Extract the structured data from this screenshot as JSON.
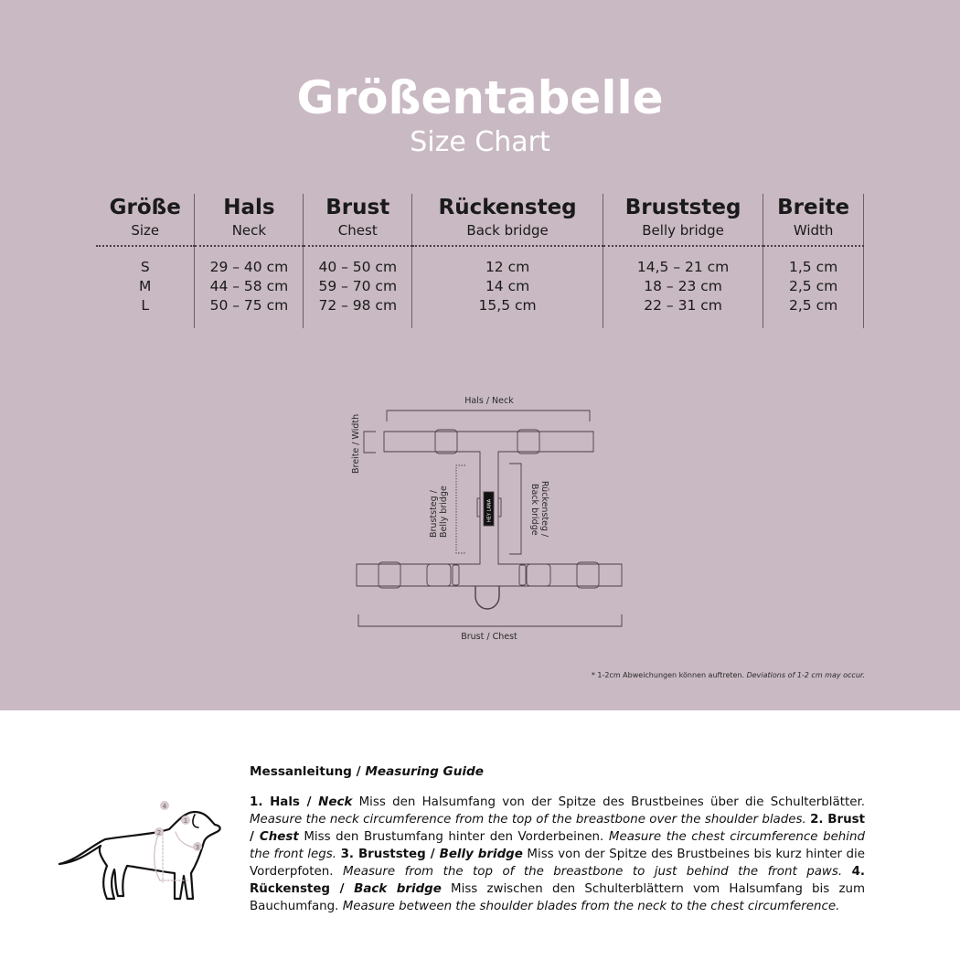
{
  "header": {
    "title": "Größentabelle",
    "subtitle": "Size Chart"
  },
  "table": {
    "columns": [
      {
        "de": "Größe",
        "en": "Size"
      },
      {
        "de": "Hals",
        "en": "Neck"
      },
      {
        "de": "Brust",
        "en": "Chest"
      },
      {
        "de": "Rückensteg",
        "en": "Back bridge"
      },
      {
        "de": "Bruststeg",
        "en": "Belly bridge"
      },
      {
        "de": "Breite",
        "en": "Width"
      }
    ],
    "rows": [
      [
        "S",
        "29 – 40 cm",
        "40 – 50 cm",
        "12 cm",
        "14,5 – 21 cm",
        "1,5 cm"
      ],
      [
        "M",
        "44 – 58 cm",
        "59 – 70 cm",
        "14 cm",
        "18 – 23 cm",
        "2,5 cm"
      ],
      [
        "L",
        "50 – 75 cm",
        "72 – 98 cm",
        "15,5 cm",
        "22 – 31 cm",
        "2,5 cm"
      ]
    ]
  },
  "diagram": {
    "neck": "Hals / Neck",
    "chest": "Brust / Chest",
    "width": "Breite / Width",
    "belly_1": "Bruststeg /",
    "belly_2": "Belly bridge",
    "back_1": "Rückensteg /",
    "back_2": "Back bridge",
    "brand": "HEY LANA"
  },
  "note": {
    "de": "* 1-2cm Abweichungen können auftreten.",
    "en": "Deviations of 1-2 cm may occur."
  },
  "guide": {
    "title_de": "Messanleitung / ",
    "title_en": "Measuring Guide",
    "items": [
      {
        "h_de": "1. Hals / ",
        "h_en": "Neck",
        "de": " Miss den Halsumfang von der Spitze des Brustbeines über die Schulterblätter. ",
        "en": "Measure the neck circumference from the top of the breastbone over the shoulder blades. "
      },
      {
        "h_de": "2. Brust / ",
        "h_en": "Chest",
        "de": " Miss den Brustumfang hinter den Vorderbeinen. ",
        "en": "Measure the chest circumference behind the front legs. "
      },
      {
        "h_de": "3. Bruststeg / ",
        "h_en": "Belly bridge",
        "de": " Miss von der Spitze des Brustbeines bis kurz hinter die Vorderpfoten. ",
        "en": "Measure from the top of the breastbone to just behind the front paws. "
      },
      {
        "h_de": "4. Rückensteg / ",
        "h_en": "Back bridge",
        "de": " Miss zwischen den Schulterblättern vom Halsumfang bis zum Bauchumfang. ",
        "en": "Measure between the shoulder blades from the neck to the chest circumference."
      }
    ],
    "markers": [
      "1",
      "2",
      "3",
      "4"
    ]
  },
  "colors": {
    "background": "#c9b9c2",
    "line": "#4a4046",
    "marker": "#d9c9d1"
  }
}
